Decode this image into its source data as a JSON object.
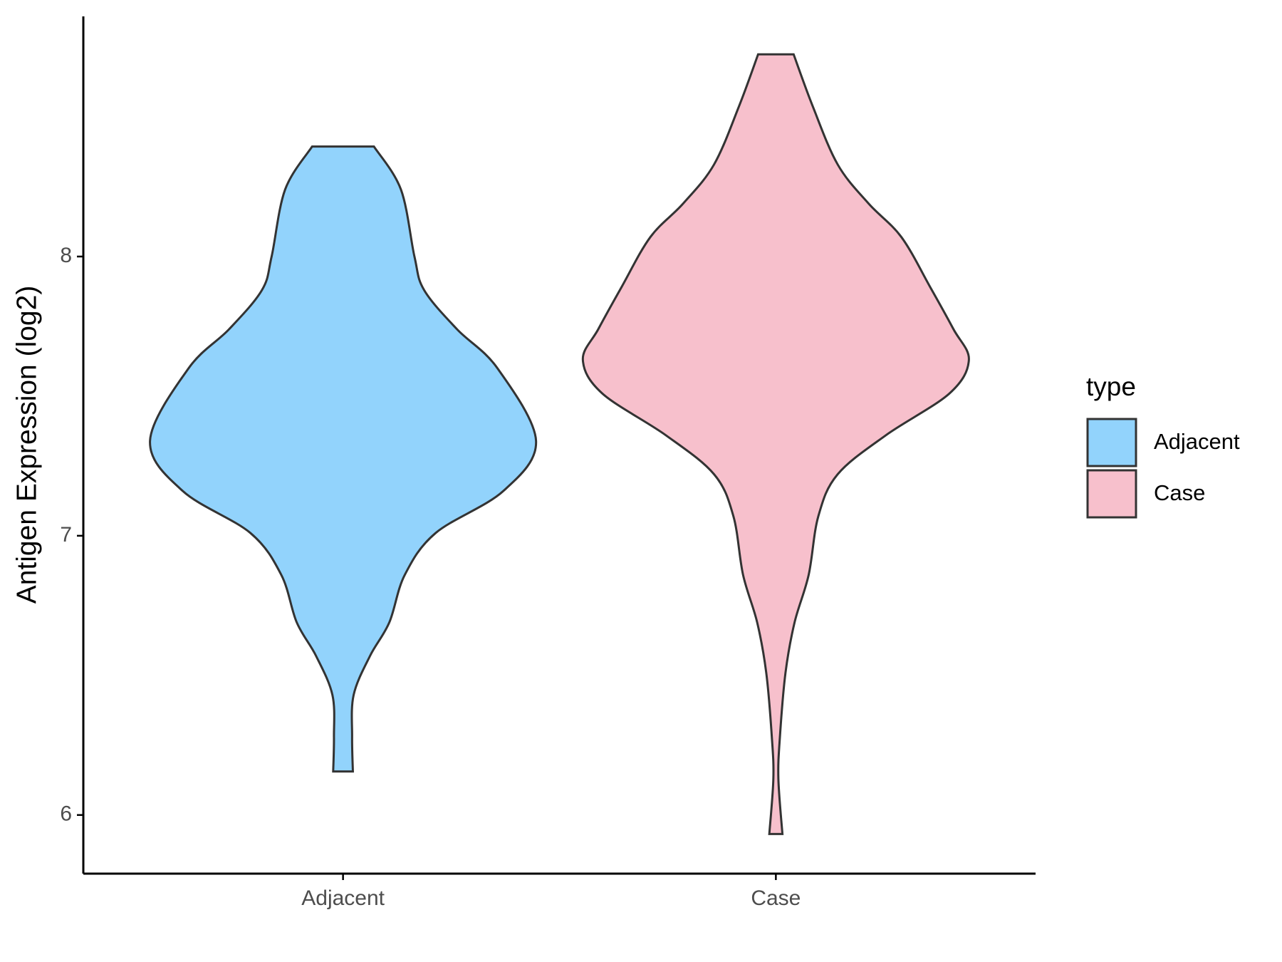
{
  "chart_data": {
    "type": "violin",
    "ylabel": "Antigen Expression (log2)",
    "categories": [
      "Adjacent",
      "Case"
    ],
    "legend_title": "type",
    "legend": "right",
    "ylim": [
      5.79,
      8.86
    ],
    "yticks": [
      6,
      7,
      8
    ],
    "series": [
      {
        "name": "Adjacent",
        "color": "#92d3fc",
        "y": [
          8.394,
          8.24,
          8.0,
          7.88,
          7.74,
          7.6,
          7.34,
          7.16,
          7.01,
          6.86,
          6.69,
          6.57,
          6.43,
          6.28,
          6.156
        ],
        "density": [
          0.16,
          0.3,
          0.37,
          0.42,
          0.59,
          0.8,
          1.0,
          0.83,
          0.48,
          0.32,
          0.24,
          0.14,
          0.055,
          0.047,
          0.051
        ]
      },
      {
        "name": "Case",
        "color": "#f7c0cc",
        "y": [
          8.724,
          8.54,
          8.33,
          8.19,
          8.07,
          7.89,
          7.74,
          7.63,
          7.51,
          7.36,
          7.22,
          7.07,
          6.86,
          6.69,
          6.51,
          6.28,
          6.13,
          5.932
        ],
        "density": [
          0.092,
          0.19,
          0.32,
          0.48,
          0.65,
          0.8,
          0.92,
          1.0,
          0.9,
          0.57,
          0.32,
          0.22,
          0.17,
          0.097,
          0.05,
          0.021,
          0.013,
          0.034
        ]
      }
    ]
  }
}
